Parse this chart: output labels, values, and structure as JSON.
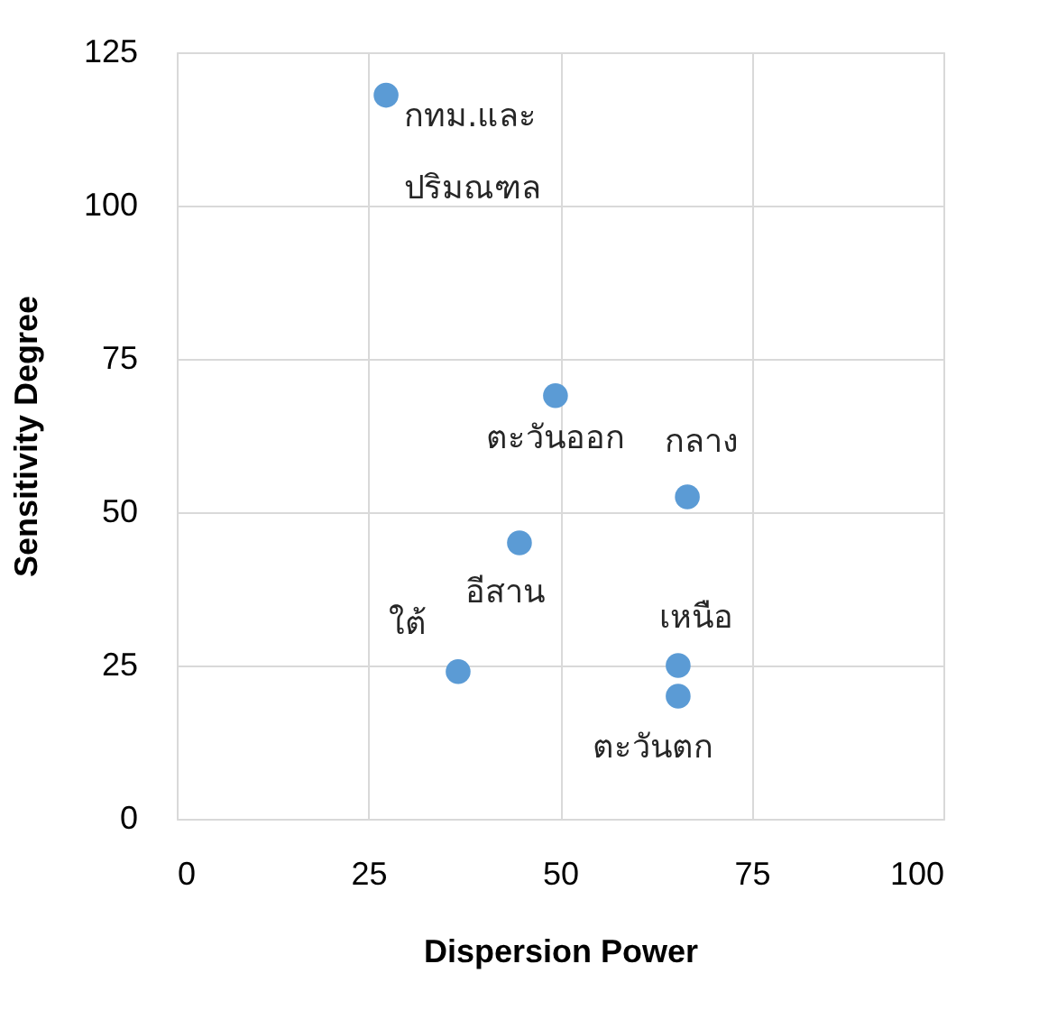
{
  "chart_data": {
    "type": "scatter",
    "xlabel": "Dispersion Power",
    "ylabel": "Sensitivity Degree",
    "x": [
      27.3,
      49.4,
      66.6,
      44.7,
      36.7,
      65.4,
      65.4
    ],
    "series": [
      {
        "color": "#5b9bd5",
        "values": [
          118,
          69,
          52.5,
          45,
          24,
          25,
          20
        ]
      }
    ],
    "annotations": [
      {
        "text": "กทม.และ\nปริมณฑล",
        "x": 27.3,
        "y": 118
      },
      {
        "text": "ตะวันออก",
        "x": 49.4,
        "y": 69
      },
      {
        "text": "กลาง",
        "x": 66.6,
        "y": 52.5
      },
      {
        "text": "อีสาน",
        "x": 44.7,
        "y": 45
      },
      {
        "text": "ใต้",
        "x": 36.7,
        "y": 24
      },
      {
        "text": "เหนือ",
        "x": 65.4,
        "y": 25
      },
      {
        "text": "ตะวันตก",
        "x": 65.4,
        "y": 20
      }
    ],
    "xlim": [
      0,
      100
    ],
    "xticks": [
      0,
      25,
      50,
      75,
      100
    ],
    "ylim": [
      0,
      125
    ],
    "yticks": [
      0,
      25,
      50,
      75,
      100,
      125
    ],
    "grid": true,
    "marker": "circle"
  }
}
